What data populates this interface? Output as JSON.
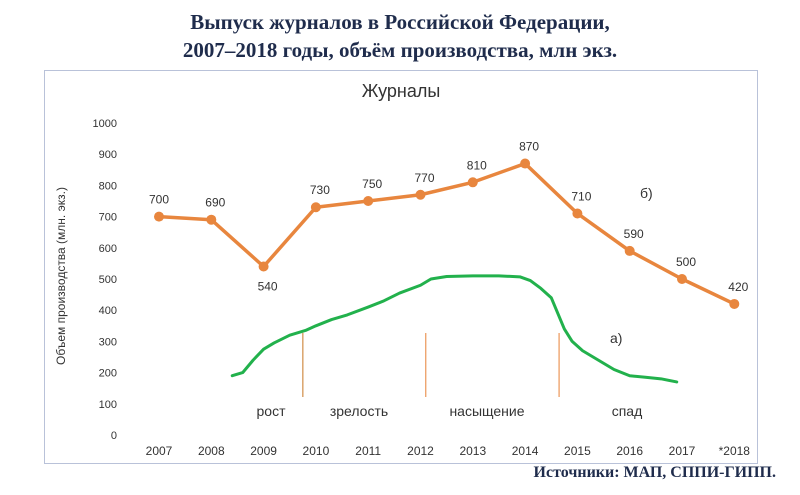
{
  "header": {
    "title_line1": "Выпуск журналов в Российской Федерации,",
    "title_line2": "2007–2018 годы, объём производства, млн экз."
  },
  "source": "Источники: МАП, СППИ-ГИПП.",
  "chart_data": {
    "type": "line",
    "title": "Журналы",
    "ylabel": "Объем производства (млн. экз.)",
    "xlabel": "",
    "ylim": [
      0,
      1000
    ],
    "yticks": [
      0,
      100,
      200,
      300,
      400,
      500,
      600,
      700,
      800,
      900,
      1000
    ],
    "categories": [
      "2007",
      "2008",
      "2009",
      "2010",
      "2011",
      "2012",
      "2013",
      "2014",
      "2015",
      "2016",
      "2017",
      "*2018"
    ],
    "series": [
      {
        "name": "б)",
        "color": "#e8863e",
        "values": [
          700,
          690,
          540,
          730,
          750,
          770,
          810,
          870,
          710,
          590,
          500,
          420
        ],
        "labels": [
          "700",
          "690",
          "540",
          "730",
          "750",
          "770",
          "810",
          "870",
          "710",
          "590",
          "500",
          "420"
        ]
      },
      {
        "name": "а)",
        "color": "#22b14c",
        "x": [
          2008.4,
          2008.6,
          2008.8,
          2009.0,
          2009.2,
          2009.5,
          2009.8,
          2010.0,
          2010.3,
          2010.6,
          2011.0,
          2011.3,
          2011.6,
          2012.0,
          2012.2,
          2012.5,
          2013.0,
          2013.5,
          2013.9,
          2014.1,
          2014.3,
          2014.5,
          2014.6,
          2014.75,
          2014.9,
          2015.1,
          2015.4,
          2015.7,
          2016.0,
          2016.3,
          2016.6,
          2016.9
        ],
        "values": [
          190,
          200,
          240,
          275,
          295,
          320,
          335,
          350,
          370,
          385,
          410,
          430,
          455,
          480,
          500,
          508,
          510,
          510,
          507,
          495,
          470,
          440,
          400,
          340,
          300,
          270,
          240,
          210,
          190,
          185,
          180,
          170
        ]
      }
    ],
    "phases": [
      {
        "label": "рост",
        "x": 2009.75,
        "color": "#c97a2a"
      },
      {
        "label": "зрелость",
        "x": 2012.1,
        "color": "#e8863e"
      },
      {
        "label": "насыщение",
        "x": 2014.65,
        "color": "#e8863e"
      },
      {
        "label": "спад"
      }
    ],
    "grid": false,
    "legend": "none"
  }
}
